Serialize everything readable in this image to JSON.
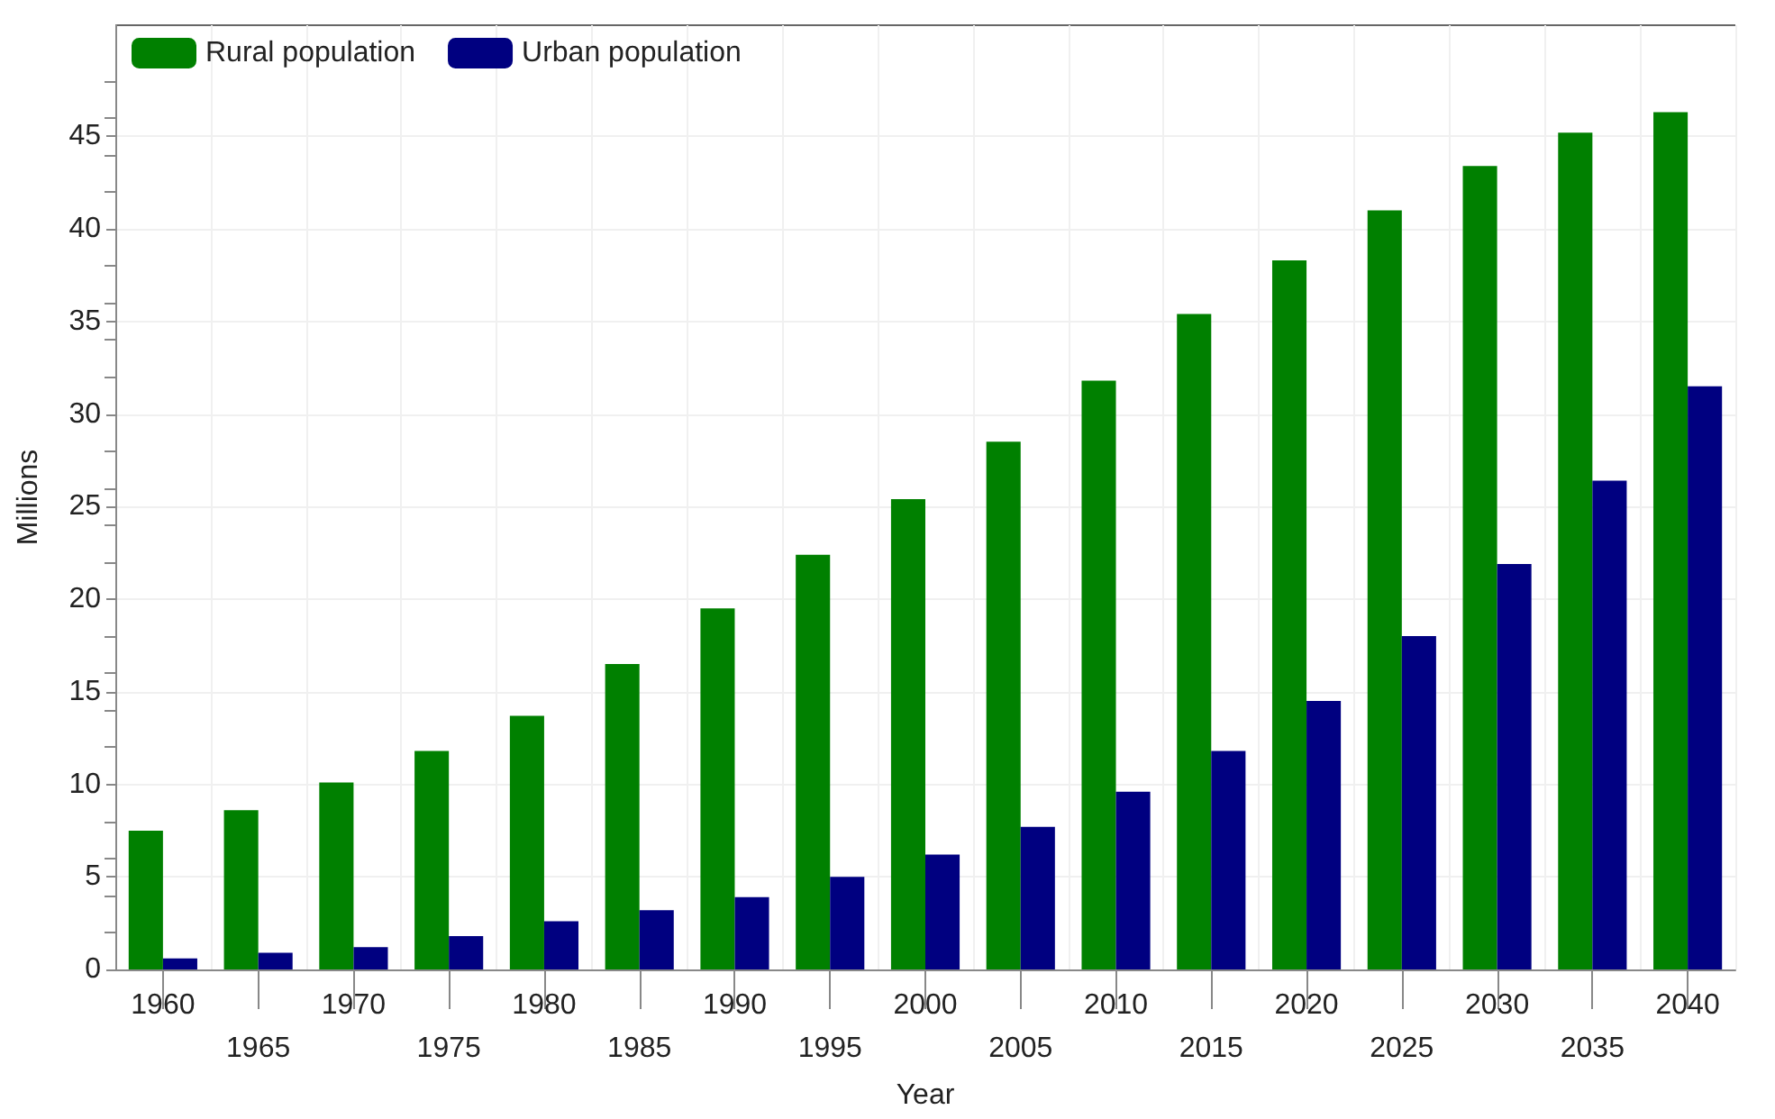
{
  "chart_data": {
    "type": "bar",
    "xlabel": "Year",
    "ylabel": "Millions",
    "categories": [
      "1960",
      "1965",
      "1970",
      "1975",
      "1980",
      "1985",
      "1990",
      "1995",
      "2000",
      "2005",
      "2010",
      "2015",
      "2020",
      "2025",
      "2030",
      "2035",
      "2040"
    ],
    "series": [
      {
        "name": "Rural population",
        "color": "#008000",
        "values": [
          7.5,
          8.6,
          10.1,
          11.8,
          13.7,
          16.5,
          19.5,
          22.4,
          25.4,
          28.5,
          31.8,
          35.4,
          38.3,
          41.0,
          43.4,
          45.2,
          46.3
        ]
      },
      {
        "name": "Urban population",
        "color": "#000080",
        "values": [
          0.6,
          0.9,
          1.2,
          1.8,
          2.6,
          3.2,
          3.9,
          5.0,
          6.2,
          7.7,
          9.6,
          11.8,
          14.5,
          18.0,
          21.9,
          26.4,
          31.5
        ]
      }
    ],
    "ylim": [
      0,
      51
    ],
    "yticks": [
      0,
      5,
      10,
      15,
      20,
      25,
      30,
      35,
      40,
      45
    ],
    "grid": true,
    "legend": "top left"
  }
}
